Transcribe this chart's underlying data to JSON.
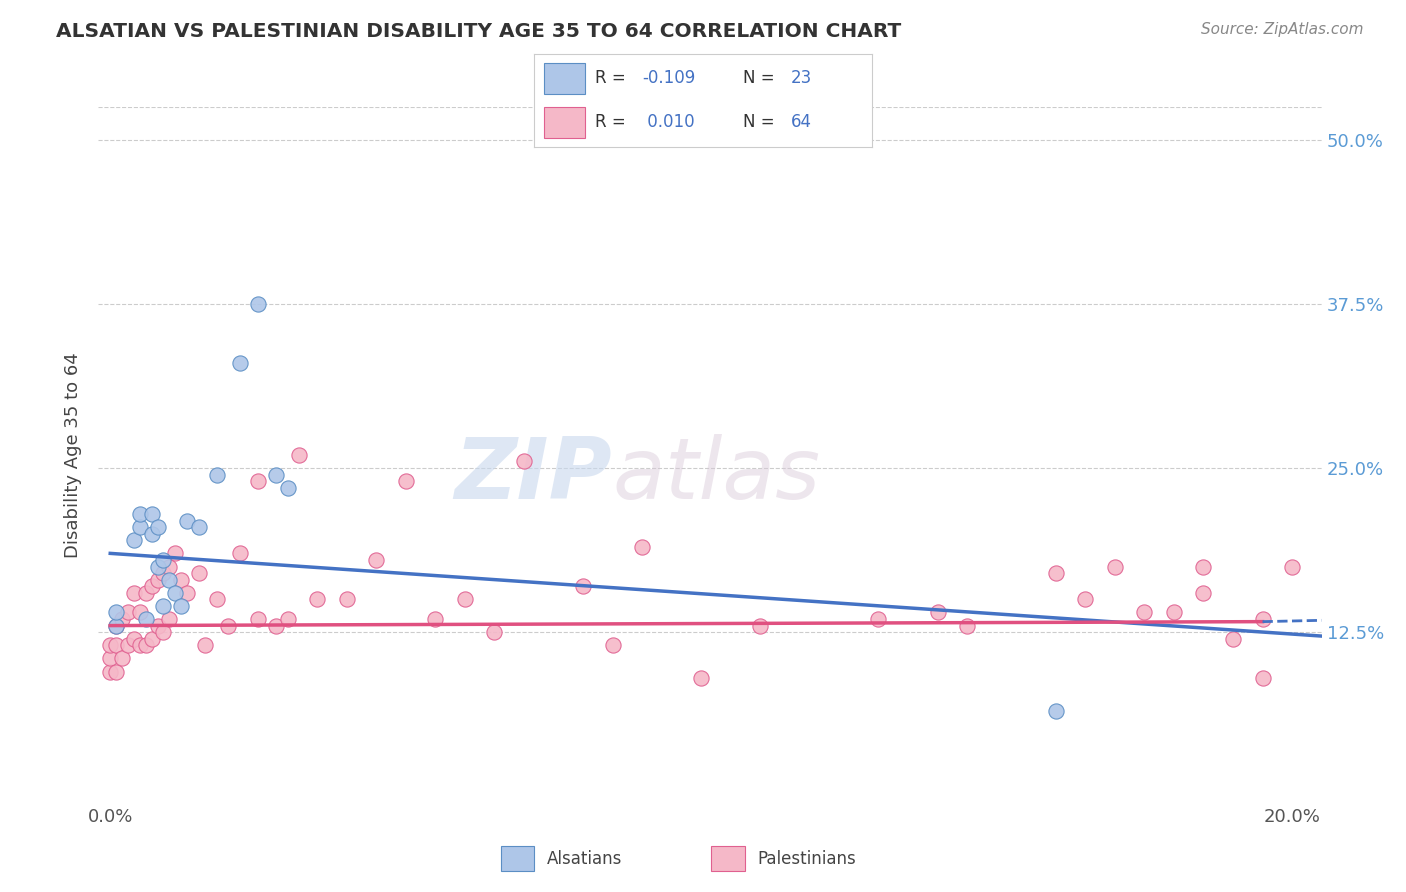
{
  "title": "ALSATIAN VS PALESTINIAN DISABILITY AGE 35 TO 64 CORRELATION CHART",
  "source": "Source: ZipAtlas.com",
  "ylabel": "Disability Age 35 to 64",
  "xlim": [
    -0.002,
    0.205
  ],
  "ylim": [
    -0.005,
    0.525
  ],
  "ytick_labels": [
    "12.5%",
    "25.0%",
    "37.5%",
    "50.0%"
  ],
  "ytick_vals": [
    0.125,
    0.25,
    0.375,
    0.5
  ],
  "xtick_vals": [
    0.0,
    0.2
  ],
  "xtick_labels": [
    "0.0%",
    "20.0%"
  ],
  "legend_r1": "R = -0.109",
  "legend_n1": "N = 23",
  "legend_r2": "R =  0.010",
  "legend_n2": "N = 64",
  "color_alsatian": "#aec6e8",
  "color_palestinian": "#f5b8c8",
  "edge_color_alsatian": "#5b8ec4",
  "edge_color_palestinian": "#e06090",
  "line_color_alsatian": "#4472c4",
  "line_color_palestinian": "#e05080",
  "watermark_zip": "ZIP",
  "watermark_atlas": "atlas",
  "alsatian_x": [
    0.001,
    0.001,
    0.004,
    0.005,
    0.005,
    0.006,
    0.007,
    0.007,
    0.008,
    0.008,
    0.009,
    0.009,
    0.01,
    0.011,
    0.012,
    0.013,
    0.015,
    0.018,
    0.022,
    0.025,
    0.028,
    0.03,
    0.16
  ],
  "alsatian_y": [
    0.13,
    0.14,
    0.195,
    0.205,
    0.215,
    0.135,
    0.2,
    0.215,
    0.175,
    0.205,
    0.145,
    0.18,
    0.165,
    0.155,
    0.145,
    0.21,
    0.205,
    0.245,
    0.33,
    0.375,
    0.245,
    0.235,
    0.065
  ],
  "palestinian_x": [
    0.0,
    0.0,
    0.0,
    0.001,
    0.001,
    0.001,
    0.002,
    0.002,
    0.003,
    0.003,
    0.004,
    0.004,
    0.005,
    0.005,
    0.006,
    0.006,
    0.007,
    0.007,
    0.008,
    0.008,
    0.009,
    0.009,
    0.01,
    0.01,
    0.011,
    0.012,
    0.013,
    0.015,
    0.016,
    0.018,
    0.02,
    0.022,
    0.025,
    0.025,
    0.028,
    0.03,
    0.032,
    0.035,
    0.04,
    0.045,
    0.05,
    0.055,
    0.06,
    0.065,
    0.07,
    0.08,
    0.085,
    0.09,
    0.1,
    0.11,
    0.13,
    0.14,
    0.145,
    0.16,
    0.165,
    0.17,
    0.175,
    0.18,
    0.185,
    0.19,
    0.195,
    0.2,
    0.185,
    0.195
  ],
  "palestinian_y": [
    0.095,
    0.105,
    0.115,
    0.095,
    0.115,
    0.13,
    0.105,
    0.135,
    0.115,
    0.14,
    0.12,
    0.155,
    0.115,
    0.14,
    0.115,
    0.155,
    0.12,
    0.16,
    0.13,
    0.165,
    0.125,
    0.17,
    0.135,
    0.175,
    0.185,
    0.165,
    0.155,
    0.17,
    0.115,
    0.15,
    0.13,
    0.185,
    0.135,
    0.24,
    0.13,
    0.135,
    0.26,
    0.15,
    0.15,
    0.18,
    0.24,
    0.135,
    0.15,
    0.125,
    0.255,
    0.16,
    0.115,
    0.19,
    0.09,
    0.13,
    0.135,
    0.14,
    0.13,
    0.17,
    0.15,
    0.175,
    0.14,
    0.14,
    0.175,
    0.12,
    0.09,
    0.175,
    0.155,
    0.135
  ],
  "trend_als_x0": 0.0,
  "trend_als_x1": 0.205,
  "trend_als_y0": 0.185,
  "trend_als_y1": 0.122,
  "trend_pal_x0": 0.0,
  "trend_pal_x1": 0.195,
  "trend_pal_y0": 0.13,
  "trend_pal_y1": 0.133,
  "trend_pal_dash_x0": 0.195,
  "trend_pal_dash_x1": 0.205,
  "trend_pal_dash_y0": 0.133,
  "trend_pal_dash_y1": 0.134
}
